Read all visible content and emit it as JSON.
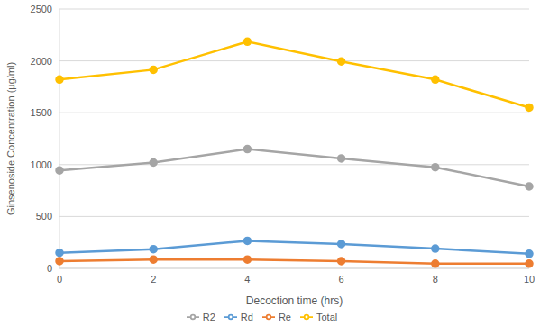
{
  "chart_data": {
    "type": "line",
    "x_label": "Decoction time (hrs)",
    "y_label": "Ginsenoside Concentration (µg/ml)",
    "categories": [
      "0",
      "2",
      "4",
      "6",
      "8",
      "10"
    ],
    "series": [
      {
        "name": "Rd",
        "color": "#5b9bd5",
        "values": [
          150,
          185,
          265,
          235,
          190,
          140
        ]
      },
      {
        "name": "Re",
        "color": "#ed7d31",
        "values": [
          70,
          85,
          85,
          70,
          45,
          45
        ]
      },
      {
        "name": "R2",
        "color": "#a5a5a5",
        "values": [
          945,
          1020,
          1150,
          1060,
          975,
          790
        ]
      },
      {
        "name": "Total",
        "color": "#ffc000",
        "values": [
          1820,
          1915,
          2185,
          1995,
          1820,
          1550
        ]
      }
    ],
    "ylim": [
      0,
      2500
    ],
    "yticks": [
      0,
      500,
      1000,
      1500,
      2000,
      2500
    ],
    "grid": true,
    "legend": "bottom",
    "marker": "circle"
  }
}
